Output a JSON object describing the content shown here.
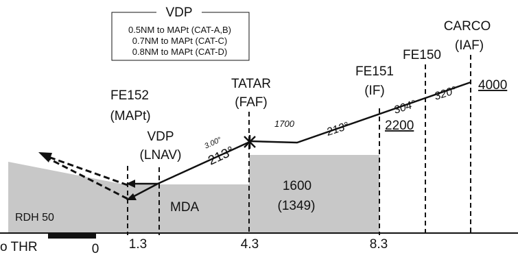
{
  "colors": {
    "terrain": "#c8c8c8",
    "ink": "#111111",
    "background": "#ffffff"
  },
  "vdp_box": {
    "title": "VDP",
    "lines": [
      "0.5NM to MAPt (CAT-A,B)",
      "0.7NM to MAPt (CAT-C)",
      "0.8NM to MAPt (CAT-D)"
    ]
  },
  "fixes": {
    "fe152": {
      "name": "FE152",
      "role": "(MAPt)"
    },
    "vdp": {
      "name": "VDP",
      "role": "(LNAV)"
    },
    "tatar": {
      "name": "TATAR",
      "role": "(FAF)",
      "altitude": "1700"
    },
    "fe151": {
      "name": "FE151",
      "role": "(IF)",
      "altitude": "2200"
    },
    "fe150": {
      "name": "FE150"
    },
    "carco": {
      "name": "CARCO",
      "role": "(IAF)",
      "altitude": "4000"
    }
  },
  "courses": {
    "final": "213°",
    "glide_angle": "3.00°",
    "intermediate": "213°",
    "seg_304": "304°",
    "seg_320": "320°"
  },
  "terrain": {
    "mda_label": "MDA",
    "minimum": "1600",
    "minimum_haat": "(1349)",
    "rdh": "RDH 50"
  },
  "distances": {
    "thr_label": "o THR",
    "zero": "0",
    "d1": "1.3",
    "d2": "4.3",
    "d3": "8.3"
  }
}
